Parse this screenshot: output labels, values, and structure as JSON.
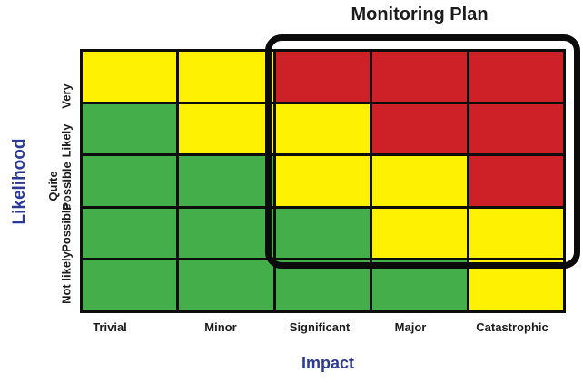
{
  "annotation": {
    "label": "Monitoring Plan",
    "covers_columns": [
      "Significant",
      "Major",
      "Catastrophic"
    ],
    "covers_rows": [
      "Very",
      "Likely",
      "Quite Possible",
      "Possible"
    ]
  },
  "colors": {
    "red": "#CE2127",
    "green": "#43AE4A",
    "yellow": "#FFF101",
    "grid_line": "#0d0d0d",
    "outline_black": "#0b0b0b",
    "axis_label_blue": "#2B3A97",
    "tick_text": "#1c1c1c"
  },
  "chart_data": {
    "type": "heatmap",
    "title": "Monitoring Plan",
    "xlabel": "Impact",
    "ylabel": "Likelihood",
    "x_categories": [
      "Trivial",
      "Minor",
      "Significant",
      "Major",
      "Catastrophic"
    ],
    "y_categories": [
      "Very",
      "Likely",
      "Quite Possible",
      "Possible",
      "Not likely"
    ],
    "rows_order": "top_to_bottom",
    "cells": [
      [
        "yellow",
        "yellow",
        "red",
        "red",
        "red"
      ],
      [
        "green",
        "yellow",
        "yellow",
        "red",
        "red"
      ],
      [
        "green",
        "green",
        "yellow",
        "yellow",
        "red"
      ],
      [
        "green",
        "green",
        "green",
        "yellow",
        "yellow"
      ],
      [
        "green",
        "green",
        "green",
        "green",
        "yellow"
      ]
    ],
    "legend": "none",
    "grid": "on"
  }
}
